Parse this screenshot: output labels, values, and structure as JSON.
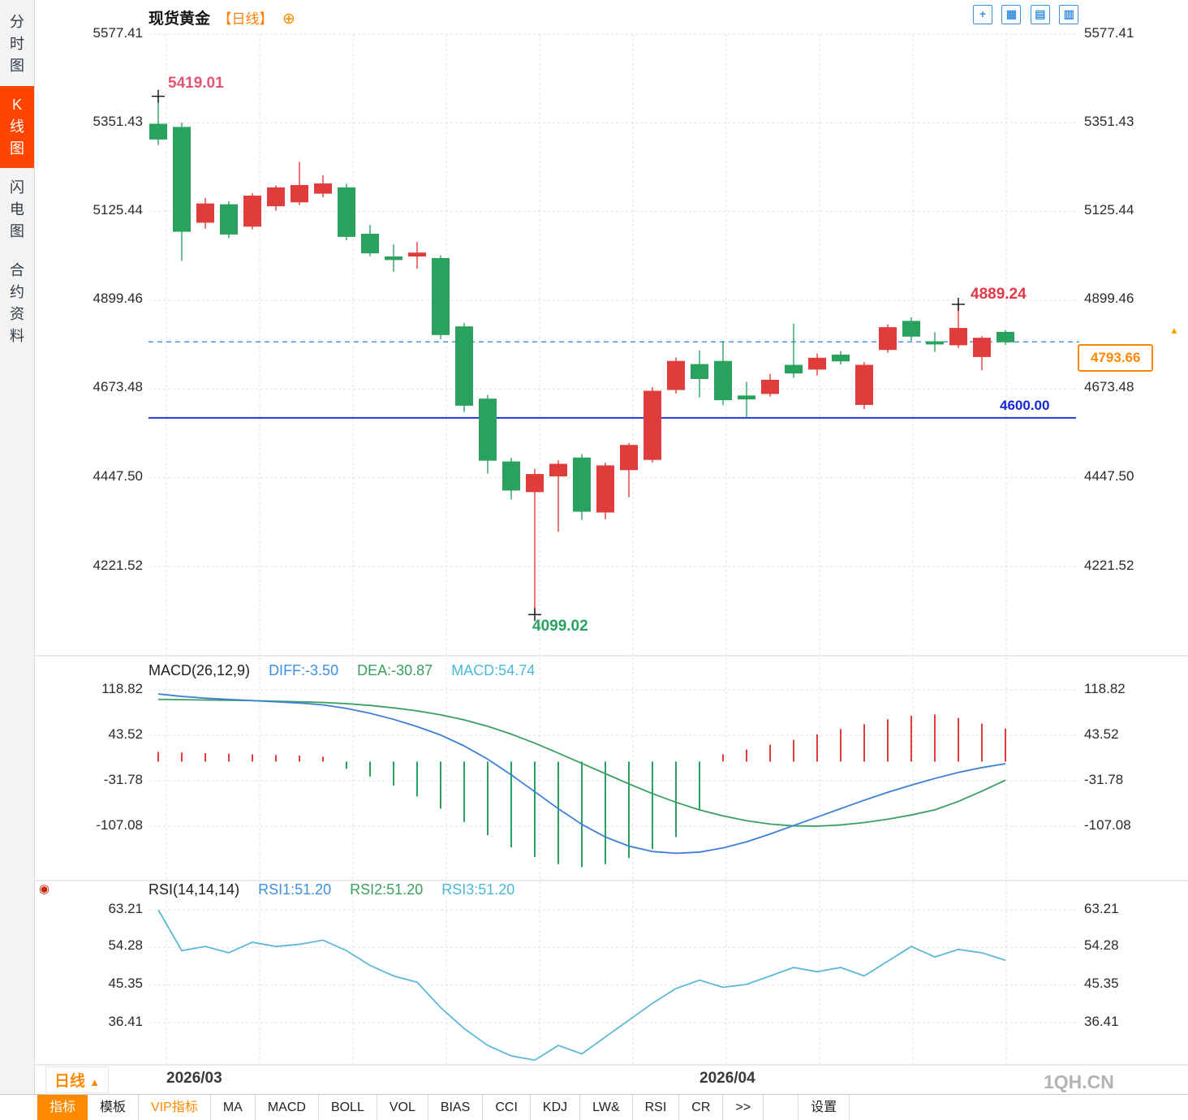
{
  "window": {
    "watermark": "1QH.CN"
  },
  "sidebar": {
    "items": [
      {
        "label": "分时图",
        "active": false
      },
      {
        "label": "K线图",
        "active": true
      },
      {
        "label": "闪电图",
        "active": false
      },
      {
        "label": "合约资料",
        "active": false
      }
    ]
  },
  "header": {
    "title": "现货黄金",
    "period": "【日线】",
    "add_icon": "⊕",
    "toolbar_icons": [
      {
        "name": "pan-icon",
        "glyph": "+"
      },
      {
        "name": "grid-layout-icon",
        "glyph": "▦"
      },
      {
        "name": "left-axis-layout-icon",
        "glyph": "▤"
      },
      {
        "name": "right-axis-layout-icon",
        "glyph": "▥"
      }
    ]
  },
  "axes": {
    "price": [
      "5577.41",
      "5351.43",
      "5125.44",
      "4899.46",
      "4673.48",
      "4447.50",
      "4221.52"
    ],
    "macd": [
      "118.82",
      "43.52",
      "-31.78",
      "-107.08"
    ],
    "rsi": [
      "63.21",
      "54.28",
      "45.35",
      "36.41"
    ],
    "x": [
      "2026/03",
      "2026/04"
    ]
  },
  "annotations": {
    "high": "5419.01",
    "low": "4099.02",
    "recent_high": "4889.24",
    "support": "4600.00",
    "last_price": "4793.66",
    "marker_up": "▲"
  },
  "macd_header": {
    "title": "MACD(26,12,9)",
    "diff": "DIFF:-3.50",
    "dea": "DEA:-30.87",
    "macd": "MACD:54.74"
  },
  "rsi_header": {
    "icon": "◉",
    "title": "RSI(14,14,14)",
    "rsi1": "RSI1:51.20",
    "rsi2": "RSI2:51.20",
    "rsi3": "RSI3:51.20"
  },
  "footer": {
    "period": "日线",
    "period_arrow": "▲"
  },
  "toolbar": {
    "tabs": [
      {
        "label": "指标",
        "style": "active"
      },
      {
        "label": "模板",
        "style": ""
      },
      {
        "label": "VIP指标",
        "style": "vip"
      },
      {
        "label": "MA",
        "style": ""
      },
      {
        "label": "MACD",
        "style": ""
      },
      {
        "label": "BOLL",
        "style": ""
      },
      {
        "label": "VOL",
        "style": ""
      },
      {
        "label": "BIAS",
        "style": ""
      },
      {
        "label": "CCI",
        "style": ""
      },
      {
        "label": "KDJ",
        "style": ""
      },
      {
        "label": "LW&",
        "style": ""
      },
      {
        "label": "RSI",
        "style": ""
      },
      {
        "label": "CR",
        "style": ""
      },
      {
        "label": ">>",
        "style": ""
      },
      {
        "label": "设置",
        "style": "gap"
      }
    ]
  },
  "chart_data": {
    "type": "candlestick",
    "title": "现货黄金 日线",
    "x_axis": {
      "labels": [
        {
          "index": 0,
          "label": "2026/03"
        },
        {
          "index": 23,
          "label": "2026/04"
        }
      ]
    },
    "price_axis_values": [
      5577.41,
      5351.43,
      5125.44,
      4899.46,
      4673.48,
      4447.5,
      4221.52
    ],
    "support_line": 4600.0,
    "last_price": 4793.66,
    "high_point": {
      "index": 0,
      "value": 5419.01
    },
    "low_point": {
      "index": 16,
      "value": 4099.02
    },
    "recent_high_point": {
      "index": 34,
      "value": 4889.24
    },
    "candles": [
      [
        5348,
        5419.01,
        5295,
        5310
      ],
      [
        5340,
        5352,
        5000,
        5075
      ],
      [
        5098,
        5160,
        5082,
        5145
      ],
      [
        5143,
        5152,
        5058,
        5068
      ],
      [
        5088,
        5172,
        5080,
        5165
      ],
      [
        5140,
        5192,
        5128,
        5186
      ],
      [
        5150,
        5252,
        5142,
        5192
      ],
      [
        5172,
        5218,
        5162,
        5196
      ],
      [
        5186,
        5196,
        5052,
        5062
      ],
      [
        5068,
        5092,
        5012,
        5020
      ],
      [
        5010,
        5042,
        4972,
        5003
      ],
      [
        5012,
        5048,
        4980,
        5020
      ],
      [
        5006,
        5014,
        4800,
        4812
      ],
      [
        4832,
        4842,
        4615,
        4632
      ],
      [
        4648,
        4658,
        4458,
        4492
      ],
      [
        4488,
        4498,
        4392,
        4416
      ],
      [
        4412,
        4470,
        4099.02,
        4456
      ],
      [
        4452,
        4492,
        4310,
        4482
      ],
      [
        4498,
        4508,
        4340,
        4362
      ],
      [
        4360,
        4486,
        4342,
        4478
      ],
      [
        4468,
        4536,
        4398,
        4530
      ],
      [
        4494,
        4678,
        4486,
        4668
      ],
      [
        4672,
        4754,
        4662,
        4744
      ],
      [
        4736,
        4772,
        4652,
        4700
      ],
      [
        4744,
        4796,
        4632,
        4646
      ],
      [
        4656,
        4692,
        4602,
        4648
      ],
      [
        4662,
        4712,
        4654,
        4696
      ],
      [
        4734,
        4840,
        4702,
        4714
      ],
      [
        4724,
        4764,
        4708,
        4752
      ],
      [
        4760,
        4770,
        4736,
        4745
      ],
      [
        4634,
        4742,
        4622,
        4734
      ],
      [
        4774,
        4838,
        4766,
        4830
      ],
      [
        4846,
        4856,
        4796,
        4808
      ],
      [
        4794,
        4818,
        4768,
        4788
      ],
      [
        4786,
        4889.24,
        4778,
        4828
      ],
      [
        4756,
        4808,
        4721,
        4803
      ],
      [
        4818,
        4824,
        4786,
        4793.66
      ]
    ],
    "macd": {
      "title": "MACD(26,12,9)",
      "diff_last": -3.5,
      "dea_last": -30.87,
      "macd_last": 54.74,
      "axis_values": [
        118.82,
        43.52,
        -31.78,
        -107.08
      ],
      "diff": [
        112,
        108,
        105,
        103,
        101,
        99,
        97,
        94,
        88,
        80,
        70,
        58,
        44,
        26,
        4,
        -22,
        -50,
        -78,
        -104,
        -125,
        -140,
        -149,
        -152,
        -150,
        -143,
        -133,
        -120,
        -106,
        -92,
        -78,
        -64,
        -51,
        -39,
        -28,
        -18,
        -10,
        -3.5
      ],
      "dea": [
        103,
        102.5,
        102,
        101.5,
        101,
        100,
        99,
        98,
        96,
        93,
        89,
        84,
        77.5,
        69,
        58.5,
        45.5,
        30.5,
        14,
        -3,
        -20,
        -37,
        -53,
        -67.5,
        -80,
        -90,
        -98,
        -103.5,
        -106.5,
        -107,
        -105,
        -101,
        -95.5,
        -88.5,
        -80,
        -66,
        -49,
        -30.87
      ],
      "histogram": [
        16,
        15,
        14,
        13,
        12,
        11,
        10,
        8,
        -12,
        -25,
        -40,
        -58,
        -78,
        -100,
        -122,
        -142,
        -158,
        -170,
        -175,
        -170,
        -160,
        -145,
        -125,
        -80,
        12,
        20,
        28,
        36,
        45,
        54,
        62,
        70,
        76,
        78,
        72,
        63,
        54.74
      ]
    },
    "rsi": {
      "title": "RSI(14,14,14)",
      "last": 51.2,
      "axis_values": [
        63.21,
        54.28,
        45.35,
        36.41
      ],
      "values": [
        63.2,
        53.5,
        54.5,
        53,
        55.5,
        54.5,
        55,
        56,
        53.5,
        50,
        47.5,
        46,
        40,
        35,
        31,
        28.5,
        27.5,
        31,
        29,
        33,
        37,
        41,
        44.5,
        46.5,
        44.8,
        45.5,
        47.5,
        49.5,
        48.5,
        49.5,
        47.5,
        51,
        54.5,
        52,
        53.8,
        53,
        51.2
      ]
    },
    "colors": {
      "up": "#e13c3c",
      "down": "#2aa25f",
      "diff_line": "#3d7fd6",
      "dea_line": "#3aa05f",
      "rsi_line": "#5bb7dc",
      "support_line": "#2036d8",
      "last_price_line": "#4b94f0"
    }
  }
}
